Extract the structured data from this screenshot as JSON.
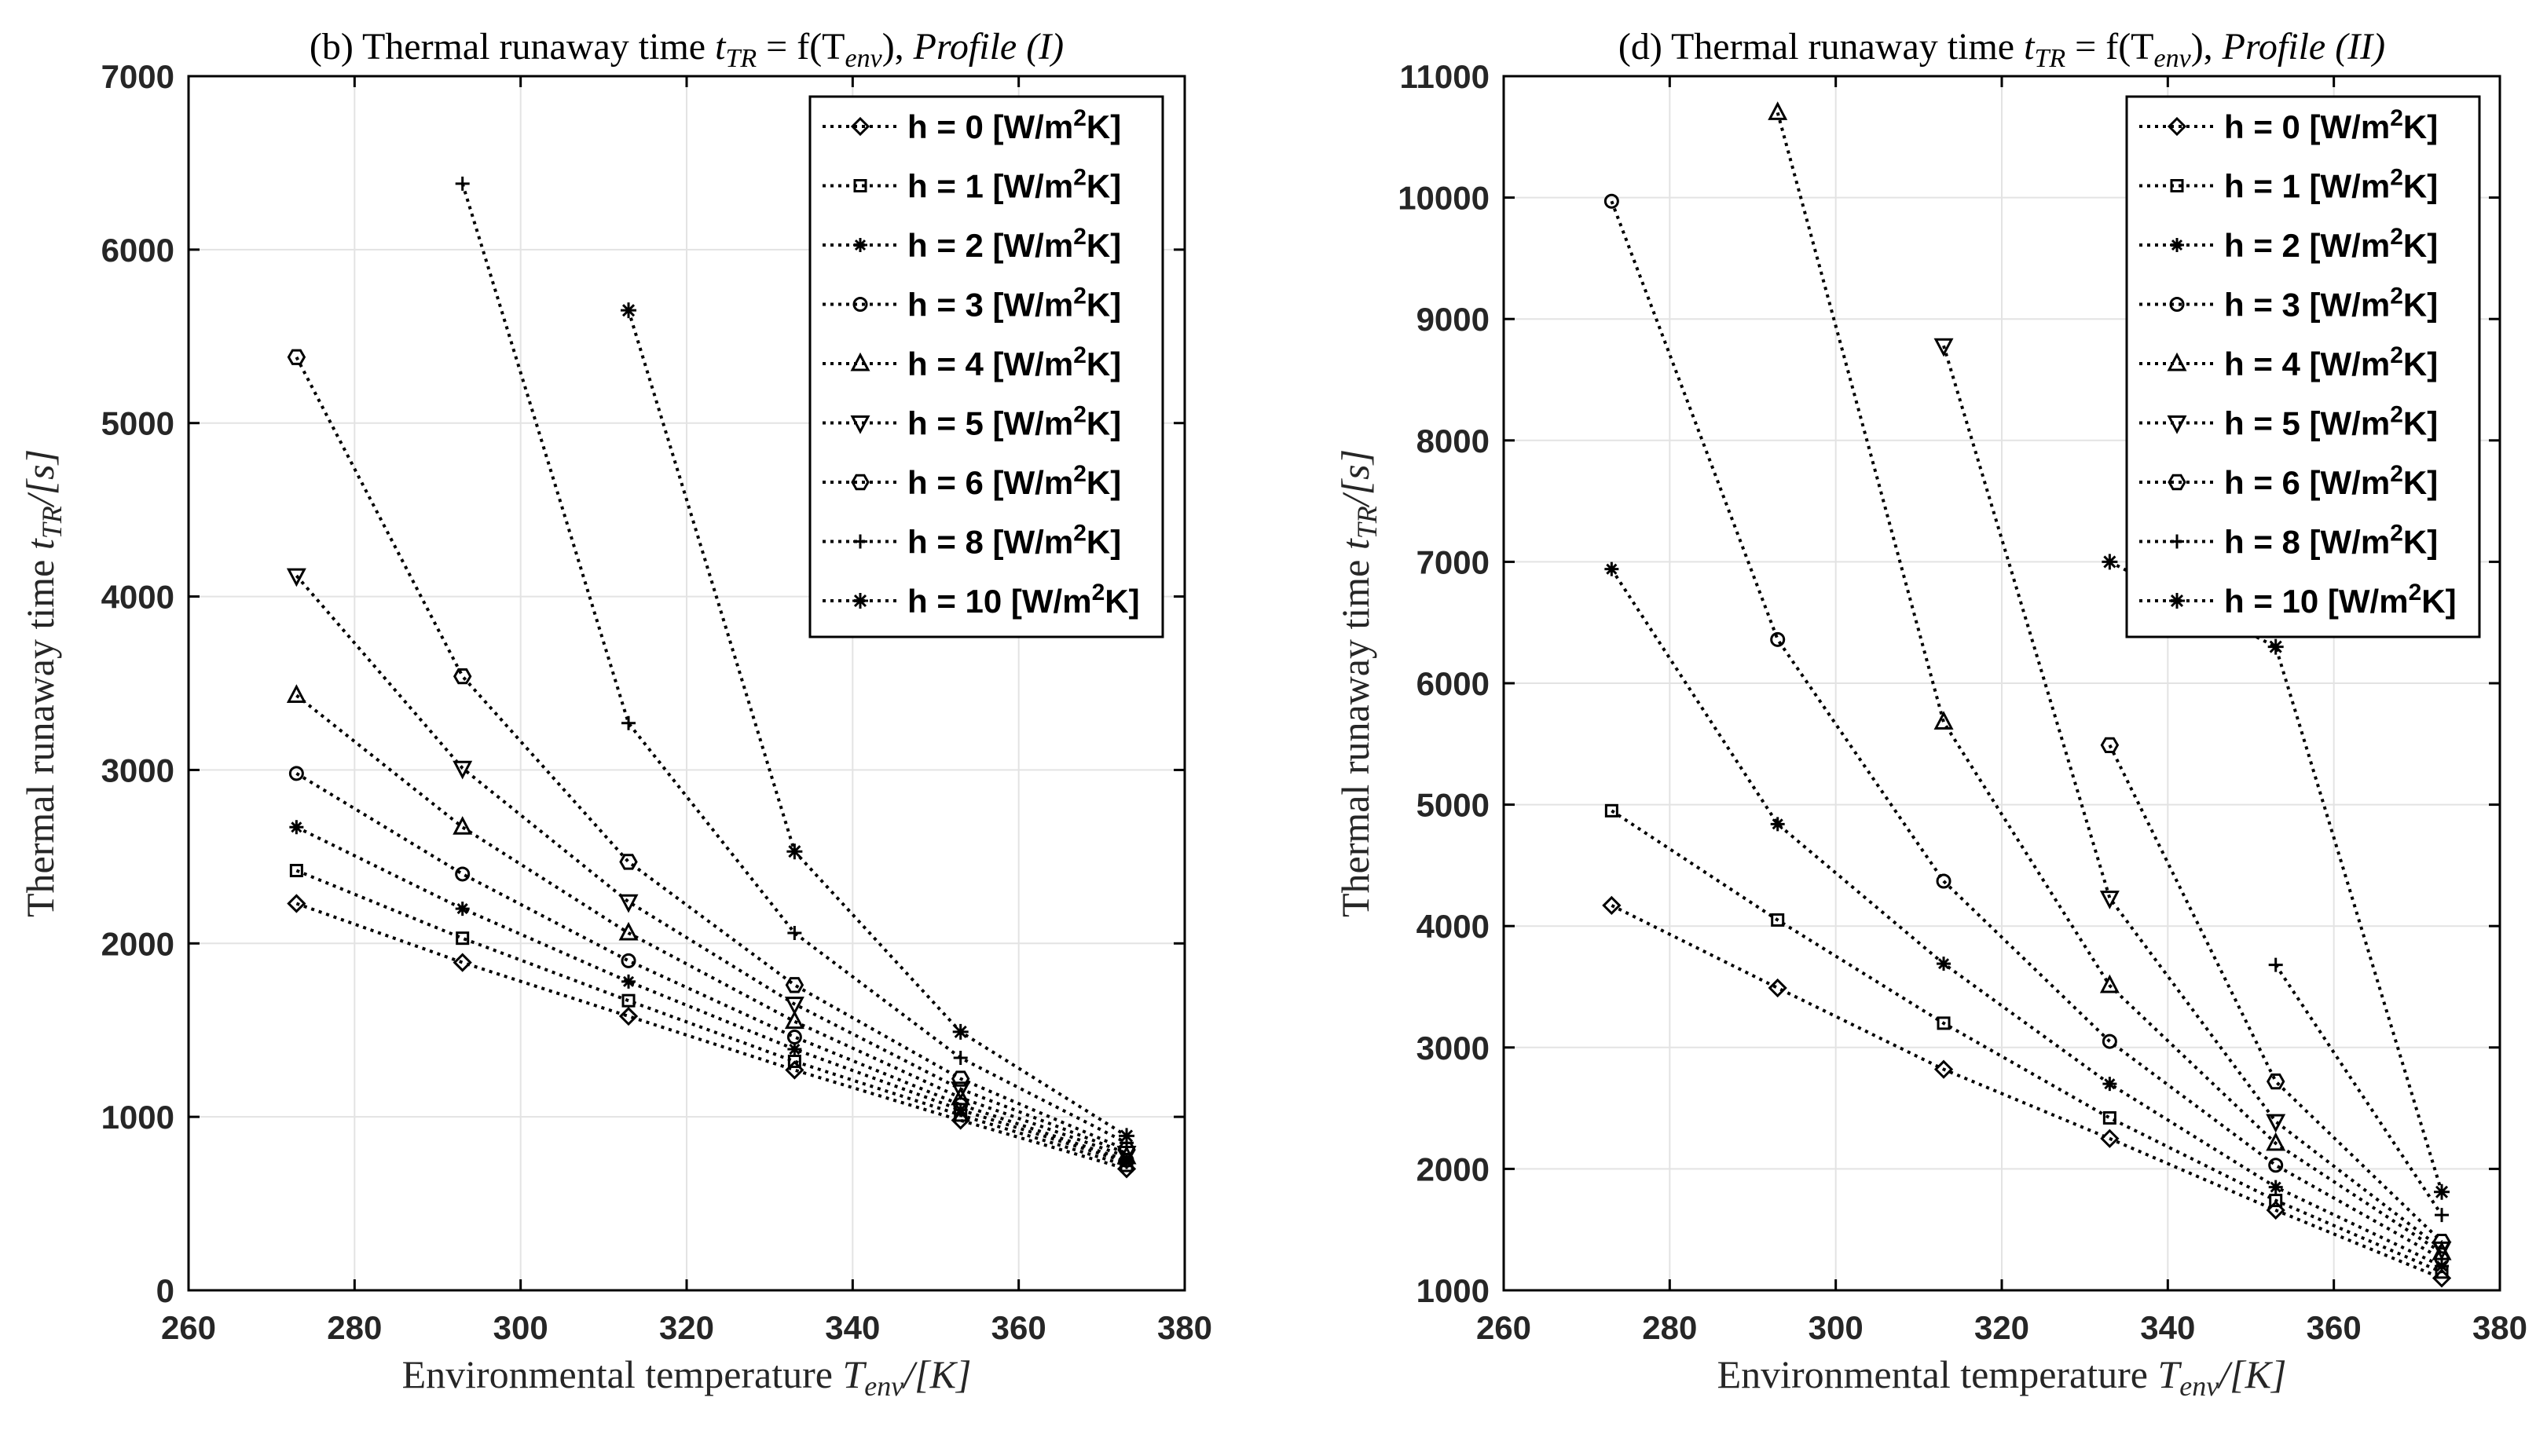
{
  "chart_data": [
    {
      "type": "line",
      "title_prefix": "(b) Thermal runaway time ",
      "title_math": "t",
      "title_math_sub": "TR",
      "title_mid": " = f(T",
      "title_mid_sub": "env",
      "title_end": "), ",
      "title_italic": "Profile (I)",
      "xlabel": "Environmental temperature ",
      "xlabel_math": "T",
      "xlabel_sub": "env",
      "xlabel_unit": "/[K]",
      "ylabel": "Thermal runaway time ",
      "ylabel_math": "t",
      "ylabel_sub": "TR",
      "ylabel_unit": "/[s]",
      "xlim": [
        260,
        380
      ],
      "ylim": [
        0,
        7000
      ],
      "xticks": [
        260,
        280,
        300,
        320,
        340,
        360,
        380
      ],
      "yticks": [
        0,
        1000,
        2000,
        3000,
        4000,
        5000,
        6000,
        7000
      ],
      "grid": true,
      "legend_position": "top-right",
      "series": [
        {
          "name": "h = 0 [W/m",
          "name_sup": "2",
          "name_end": "K]",
          "marker": "diamond",
          "x": [
            273,
            293,
            313,
            333,
            353,
            373
          ],
          "values": [
            2230,
            1890,
            1580,
            1270,
            980,
            700
          ]
        },
        {
          "name": "h = 1 [W/m",
          "name_sup": "2",
          "name_end": "K]",
          "marker": "square",
          "x": [
            273,
            293,
            313,
            333,
            353,
            373
          ],
          "values": [
            2420,
            2030,
            1670,
            1320,
            1010,
            720
          ]
        },
        {
          "name": "h = 2 [W/m",
          "name_sup": "2",
          "name_end": "K]",
          "marker": "star",
          "x": [
            273,
            293,
            313,
            333,
            353,
            373
          ],
          "values": [
            2670,
            2200,
            1780,
            1390,
            1040,
            740
          ]
        },
        {
          "name": "h = 3 [W/m",
          "name_sup": "2",
          "name_end": "K]",
          "marker": "circle",
          "x": [
            273,
            293,
            313,
            333,
            353,
            373
          ],
          "values": [
            2980,
            2400,
            1900,
            1460,
            1070,
            750
          ]
        },
        {
          "name": "h = 4 [W/m",
          "name_sup": "2",
          "name_end": "K]",
          "marker": "triangle-up",
          "x": [
            273,
            293,
            313,
            333,
            353,
            373
          ],
          "values": [
            3430,
            2670,
            2060,
            1550,
            1110,
            770
          ]
        },
        {
          "name": "h = 5 [W/m",
          "name_sup": "2",
          "name_end": "K]",
          "marker": "triangle-down",
          "x": [
            273,
            293,
            313,
            333,
            353,
            373
          ],
          "values": [
            4120,
            3010,
            2240,
            1650,
            1160,
            790
          ]
        },
        {
          "name": "h = 6 [W/m",
          "name_sup": "2",
          "name_end": "K]",
          "marker": "hexagon",
          "x": [
            273,
            293,
            313,
            333,
            353,
            373
          ],
          "values": [
            5380,
            3540,
            2470,
            1760,
            1220,
            810
          ]
        },
        {
          "name": "h = 8 [W/m",
          "name_sup": "2",
          "name_end": "K]",
          "marker": "plus",
          "x": [
            293,
            313,
            333,
            353,
            373
          ],
          "values": [
            6380,
            3270,
            2060,
            1340,
            850
          ]
        },
        {
          "name": "h = 10 [W/m",
          "name_sup": "2",
          "name_end": "K]",
          "marker": "asterisk",
          "x": [
            313,
            333,
            353,
            373
          ],
          "values": [
            5650,
            2530,
            1490,
            890
          ]
        }
      ]
    },
    {
      "type": "line",
      "title_prefix": "(d) Thermal runaway time ",
      "title_math": "t",
      "title_math_sub": "TR",
      "title_mid": " = f(T",
      "title_mid_sub": "env",
      "title_end": "), ",
      "title_italic": "Profile (II)",
      "xlabel": "Environmental temperature ",
      "xlabel_math": "T",
      "xlabel_sub": "env",
      "xlabel_unit": "/[K]",
      "ylabel": "Thermal runaway time ",
      "ylabel_math": "t",
      "ylabel_sub": "TR",
      "ylabel_unit": "/[s]",
      "xlim": [
        260,
        380
      ],
      "ylim": [
        1000,
        11000
      ],
      "xticks": [
        260,
        280,
        300,
        320,
        340,
        360,
        380
      ],
      "yticks": [
        1000,
        2000,
        3000,
        4000,
        5000,
        6000,
        7000,
        8000,
        9000,
        10000,
        11000
      ],
      "grid": true,
      "legend_position": "top-right",
      "series": [
        {
          "name": "h = 0 [W/m",
          "name_sup": "2",
          "name_end": "K]",
          "marker": "diamond",
          "x": [
            273,
            293,
            313,
            333,
            353,
            373
          ],
          "values": [
            4170,
            3490,
            2820,
            2250,
            1660,
            1100
          ]
        },
        {
          "name": "h = 1 [W/m",
          "name_sup": "2",
          "name_end": "K]",
          "marker": "square",
          "x": [
            273,
            293,
            313,
            333,
            353,
            373
          ],
          "values": [
            4950,
            4050,
            3200,
            2420,
            1740,
            1150
          ]
        },
        {
          "name": "h = 2 [W/m",
          "name_sup": "2",
          "name_end": "K]",
          "marker": "star",
          "x": [
            273,
            293,
            313,
            333,
            353,
            373
          ],
          "values": [
            6940,
            4840,
            3690,
            2700,
            1850,
            1200
          ]
        },
        {
          "name": "h = 3 [W/m",
          "name_sup": "2",
          "name_end": "K]",
          "marker": "circle",
          "x": [
            273,
            293,
            313,
            333,
            353,
            373
          ],
          "values": [
            9970,
            6360,
            4370,
            3050,
            2030,
            1260
          ]
        },
        {
          "name": "h = 4 [W/m",
          "name_sup": "2",
          "name_end": "K]",
          "marker": "triangle-up",
          "x": [
            293,
            313,
            333,
            353,
            373
          ],
          "values": [
            10700,
            5680,
            3510,
            2210,
            1310
          ]
        },
        {
          "name": "h = 5 [W/m",
          "name_sup": "2",
          "name_end": "K]",
          "marker": "triangle-down",
          "x": [
            313,
            333,
            353,
            373
          ],
          "values": [
            8780,
            4230,
            2390,
            1340
          ]
        },
        {
          "name": "h = 6 [W/m",
          "name_sup": "2",
          "name_end": "K]",
          "marker": "hexagon",
          "x": [
            333,
            353,
            373
          ],
          "values": [
            5490,
            2720,
            1400
          ]
        },
        {
          "name": "h = 8 [W/m",
          "name_sup": "2",
          "name_end": "K]",
          "marker": "plus",
          "x": [
            353,
            373
          ],
          "values": [
            3680,
            1620
          ]
        },
        {
          "name": "h = 10 [W/m",
          "name_sup": "2",
          "name_end": "K]",
          "marker": "asterisk",
          "x": [
            333,
            353,
            373
          ],
          "values": [
            7000,
            6300,
            1810
          ]
        }
      ]
    }
  ]
}
